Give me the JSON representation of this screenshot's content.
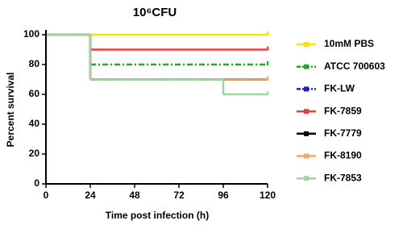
{
  "chart_data": {
    "type": "survival",
    "title": "10⁶CFU",
    "x_label": "Time post infection (h)",
    "y_label": "Percent survival",
    "xlim": [
      0,
      120
    ],
    "xticks": [
      0,
      24,
      48,
      72,
      96,
      120
    ],
    "ylim": [
      0,
      100
    ],
    "yticks": [
      0,
      20,
      40,
      60,
      80,
      100
    ],
    "series": [
      {
        "name": "10mM PBS",
        "color": "#f5e400",
        "dashed": false,
        "x": [
          0,
          120
        ],
        "values": [
          100,
          100
        ]
      },
      {
        "name": "ATCC 700603",
        "color": "#22aa22",
        "dashed": true,
        "x": [
          0,
          24,
          120
        ],
        "values": [
          100,
          80,
          80
        ]
      },
      {
        "name": "FK-LW",
        "color": "#1a1adb",
        "dashed": true,
        "x": [
          0,
          24,
          120
        ],
        "values": [
          100,
          70,
          70
        ]
      },
      {
        "name": "FK-7859",
        "color": "#f03c3c",
        "dashed": false,
        "x": [
          0,
          24,
          120
        ],
        "values": [
          100,
          90,
          90
        ]
      },
      {
        "name": "FK-7779",
        "color": "#000000",
        "dashed": false,
        "x": [
          0,
          24,
          120
        ],
        "values": [
          100,
          70,
          70
        ]
      },
      {
        "name": "FK-8190",
        "color": "#f5a860",
        "dashed": false,
        "x": [
          0,
          24,
          120
        ],
        "values": [
          100,
          70,
          70
        ]
      },
      {
        "name": "FK-7853",
        "color": "#9fd6a0",
        "dashed": false,
        "x": [
          0,
          24,
          96,
          120
        ],
        "values": [
          100,
          70,
          60,
          60
        ]
      }
    ]
  }
}
